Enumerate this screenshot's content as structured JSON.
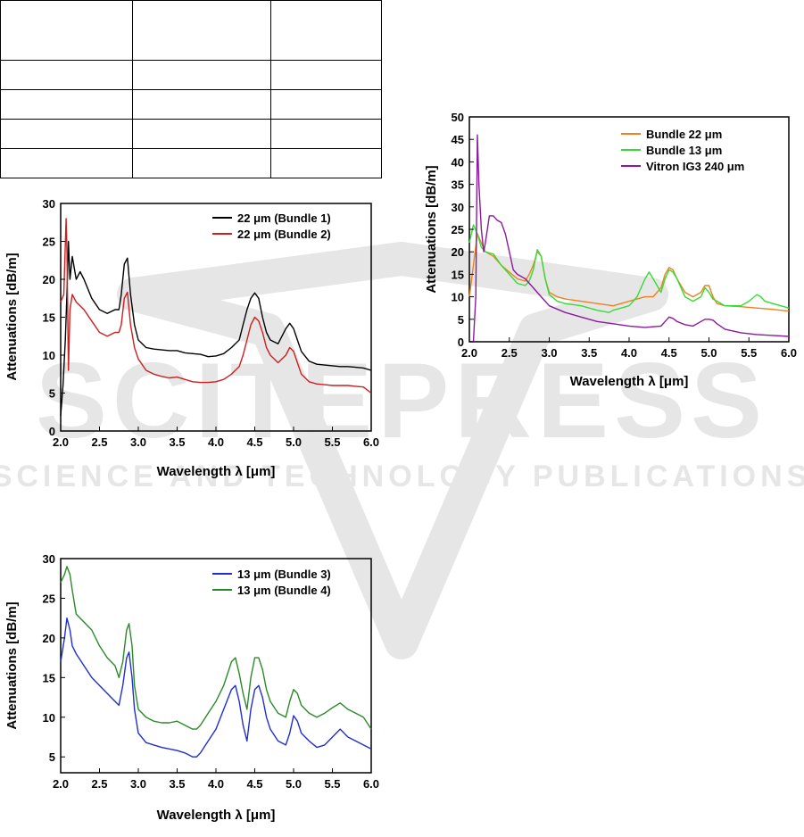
{
  "watermark": {
    "main_text": "SCITEPRESS",
    "sub_text": "SCIENCE AND TECHNOLOGY PUBLICATIONS",
    "color": "#c8c8c8"
  },
  "table_fragment": {
    "rows": 5,
    "cols": 3
  },
  "chart_data": [
    {
      "type": "line",
      "xlabel": "Wavelength λ [μm]",
      "ylabel": "Attenuations [dB/m]",
      "xlim": [
        2.0,
        6.0
      ],
      "ylim": [
        0,
        30
      ],
      "xticks": [
        "2.0",
        "2.5",
        "3.0",
        "3.5",
        "4.0",
        "4.5",
        "5.0",
        "5.5",
        "6.0"
      ],
      "yticks": [
        "0",
        "5",
        "10",
        "15",
        "20",
        "25",
        "30"
      ],
      "legend_position": "top-right",
      "grid": false,
      "series": [
        {
          "name": "22 μm (Bundle 1)",
          "color": "#000000",
          "x": [
            2.0,
            2.03,
            2.06,
            2.08,
            2.1,
            2.12,
            2.15,
            2.2,
            2.25,
            2.3,
            2.4,
            2.5,
            2.6,
            2.7,
            2.75,
            2.78,
            2.82,
            2.86,
            2.9,
            2.95,
            3.0,
            3.1,
            3.2,
            3.3,
            3.4,
            3.5,
            3.6,
            3.7,
            3.8,
            3.9,
            4.0,
            4.1,
            4.2,
            4.3,
            4.35,
            4.4,
            4.45,
            4.5,
            4.55,
            4.6,
            4.65,
            4.7,
            4.8,
            4.9,
            4.95,
            5.0,
            5.05,
            5.1,
            5.2,
            5.3,
            5.4,
            5.5,
            5.6,
            5.7,
            5.8,
            5.9,
            6.0
          ],
          "y": [
            2,
            6,
            12,
            18,
            25,
            20,
            23,
            20,
            21,
            20,
            17.5,
            16,
            15.5,
            16,
            16,
            18,
            22,
            22.8,
            18,
            14,
            12,
            11,
            10.8,
            10.7,
            10.6,
            10.6,
            10.3,
            10.2,
            10.1,
            9.8,
            9.9,
            10.2,
            11,
            12,
            14,
            16,
            17.5,
            18.2,
            17.5,
            15,
            13,
            12,
            11.5,
            13.5,
            14.2,
            13.5,
            12,
            10.5,
            9.2,
            8.8,
            8.7,
            8.6,
            8.5,
            8.5,
            8.4,
            8.3,
            8.0
          ]
        },
        {
          "name": "22 μm (Bundle 2)",
          "color": "#cc1f1f",
          "x": [
            2.0,
            2.04,
            2.07,
            2.08,
            2.1,
            2.12,
            2.15,
            2.2,
            2.25,
            2.3,
            2.4,
            2.5,
            2.6,
            2.7,
            2.75,
            2.78,
            2.82,
            2.86,
            2.9,
            2.95,
            3.0,
            3.1,
            3.2,
            3.3,
            3.4,
            3.5,
            3.6,
            3.7,
            3.8,
            3.9,
            4.0,
            4.1,
            4.2,
            4.3,
            4.35,
            4.4,
            4.45,
            4.5,
            4.55,
            4.6,
            4.65,
            4.7,
            4.8,
            4.9,
            4.95,
            5.0,
            5.05,
            5.1,
            5.2,
            5.3,
            5.4,
            5.5,
            5.6,
            5.7,
            5.8,
            5.9,
            6.0
          ],
          "y": [
            17,
            18,
            28,
            24,
            8,
            16,
            18,
            17,
            16.5,
            16,
            14.5,
            13,
            12.5,
            13,
            13,
            14,
            17.5,
            18.3,
            14,
            11,
            9.5,
            8,
            7.5,
            7.2,
            7,
            7.1,
            6.8,
            6.5,
            6.4,
            6.4,
            6.5,
            6.8,
            7.5,
            8.5,
            10,
            12,
            14,
            15,
            14.5,
            13,
            11,
            10,
            9,
            10,
            11,
            10.5,
            9,
            7.5,
            6.5,
            6.2,
            6.1,
            6,
            6,
            6,
            5.9,
            5.8,
            5.0
          ]
        }
      ]
    },
    {
      "type": "line",
      "xlabel": "Wavelength λ [μm]",
      "ylabel": "Attenuations [dB/m]",
      "xlim": [
        2.0,
        6.0
      ],
      "ylim": [
        0,
        50
      ],
      "xticks": [
        "2.0",
        "2.5",
        "3.0",
        "3.5",
        "4.0",
        "4.5",
        "5.0",
        "5.5",
        "6.0"
      ],
      "yticks": [
        "0",
        "5",
        "10",
        "15",
        "20",
        "25",
        "30",
        "35",
        "40",
        "45",
        "50"
      ],
      "legend_position": "top-right",
      "grid": false,
      "series": [
        {
          "name": "Bundle 22 μm",
          "color": "#f08020",
          "x": [
            2.0,
            2.05,
            2.1,
            2.15,
            2.2,
            2.3,
            2.4,
            2.5,
            2.6,
            2.7,
            2.75,
            2.8,
            2.85,
            2.9,
            2.95,
            3.0,
            3.1,
            3.2,
            3.4,
            3.6,
            3.8,
            4.0,
            4.1,
            4.2,
            4.3,
            4.4,
            4.45,
            4.5,
            4.55,
            4.6,
            4.7,
            4.8,
            4.9,
            4.95,
            5.0,
            5.05,
            5.1,
            5.2,
            5.4,
            5.6,
            5.8,
            6.0
          ],
          "y": [
            10,
            17,
            24,
            22,
            20,
            19,
            17,
            15.5,
            14,
            13.5,
            15,
            17,
            20,
            19,
            14,
            11,
            10,
            9.5,
            9,
            8.5,
            8,
            9,
            9.5,
            10,
            10,
            12,
            15,
            16.5,
            16,
            14,
            11,
            10,
            11,
            12.5,
            12.5,
            10,
            8.5,
            8,
            7.8,
            7.5,
            7.2,
            6.8
          ]
        },
        {
          "name": "Bundle 13 μm",
          "color": "#33dd33",
          "x": [
            2.0,
            2.05,
            2.1,
            2.15,
            2.2,
            2.3,
            2.4,
            2.5,
            2.6,
            2.7,
            2.75,
            2.8,
            2.85,
            2.9,
            2.95,
            3.0,
            3.1,
            3.2,
            3.4,
            3.6,
            3.75,
            3.8,
            4.0,
            4.1,
            4.2,
            4.25,
            4.3,
            4.4,
            4.45,
            4.5,
            4.55,
            4.6,
            4.7,
            4.8,
            4.9,
            4.95,
            5.0,
            5.05,
            5.1,
            5.2,
            5.4,
            5.5,
            5.6,
            5.65,
            5.7,
            5.8,
            6.0
          ],
          "y": [
            22,
            26,
            24,
            21,
            20,
            19.5,
            17,
            15,
            13,
            12.5,
            13.5,
            16,
            20.5,
            19,
            14,
            10.5,
            9,
            8.5,
            8,
            7,
            6.5,
            7,
            8,
            10,
            14,
            15.5,
            14,
            11,
            14,
            16,
            15.5,
            14,
            10,
            9,
            10,
            12,
            11,
            9.5,
            9,
            8,
            8,
            9,
            10.5,
            10,
            9,
            8.5,
            7.5
          ]
        },
        {
          "name": "Vitron IG3 240 μm",
          "color": "#8b1a9e",
          "x": [
            2.0,
            2.05,
            2.08,
            2.1,
            2.12,
            2.15,
            2.18,
            2.2,
            2.25,
            2.3,
            2.35,
            2.4,
            2.45,
            2.5,
            2.55,
            2.6,
            2.7,
            2.8,
            2.9,
            3.0,
            3.2,
            3.4,
            3.6,
            3.8,
            4.0,
            4.2,
            4.4,
            4.45,
            4.5,
            4.55,
            4.6,
            4.7,
            4.8,
            4.9,
            4.95,
            5.0,
            5.05,
            5.1,
            5.2,
            5.4,
            5.6,
            5.8,
            6.0
          ],
          "y": [
            0,
            0,
            10,
            46,
            35,
            25,
            20,
            22,
            28,
            28,
            27,
            26.5,
            24,
            20,
            16,
            15,
            14,
            12,
            10,
            8,
            6.5,
            5.5,
            4.5,
            4,
            3.5,
            3.2,
            3.5,
            4.5,
            5.5,
            5.2,
            4.5,
            3.8,
            3.5,
            4.5,
            5,
            5,
            4.8,
            4,
            2.8,
            2,
            1.6,
            1.4,
            1.2
          ]
        }
      ]
    },
    {
      "type": "line",
      "xlabel": "Wavelength λ [μm]",
      "ylabel": "Attenuations [dB/m]",
      "xlim": [
        2.0,
        6.0
      ],
      "ylim": [
        3,
        30
      ],
      "xticks": [
        "2.0",
        "2.5",
        "3.0",
        "3.5",
        "4.0",
        "4.5",
        "5.0",
        "5.5",
        "6.0"
      ],
      "yticks": [
        "5",
        "10",
        "15",
        "20",
        "25",
        "30"
      ],
      "legend_position": "top-right",
      "grid": false,
      "series": [
        {
          "name": "13 μm (Bundle 3)",
          "color": "#1f2fcc",
          "x": [
            2.0,
            2.05,
            2.08,
            2.12,
            2.15,
            2.2,
            2.3,
            2.4,
            2.5,
            2.6,
            2.7,
            2.75,
            2.8,
            2.85,
            2.88,
            2.92,
            2.95,
            3.0,
            3.1,
            3.2,
            3.3,
            3.4,
            3.5,
            3.6,
            3.7,
            3.75,
            3.8,
            3.9,
            4.0,
            4.1,
            4.2,
            4.25,
            4.3,
            4.35,
            4.4,
            4.45,
            4.5,
            4.55,
            4.6,
            4.65,
            4.7,
            4.8,
            4.9,
            4.95,
            5.0,
            5.05,
            5.1,
            5.2,
            5.3,
            5.4,
            5.5,
            5.6,
            5.7,
            5.8,
            5.9,
            6.0
          ],
          "y": [
            17,
            20,
            22.5,
            21,
            19,
            18,
            16.5,
            15,
            14,
            13,
            12,
            11.5,
            14,
            17.5,
            18.2,
            15,
            11,
            8,
            6.8,
            6.5,
            6.2,
            6,
            5.8,
            5.5,
            5,
            5,
            5.5,
            7,
            8.5,
            11,
            13.5,
            14,
            12,
            9,
            7,
            11,
            13.5,
            14,
            12.5,
            10,
            8.5,
            7,
            6.5,
            8,
            10.2,
            9.5,
            8,
            7,
            6.2,
            6.5,
            7.5,
            8.5,
            7.5,
            7,
            6.5,
            6
          ]
        },
        {
          "name": "13 μm (Bundle 4)",
          "color": "#2a8a2a",
          "x": [
            2.0,
            2.05,
            2.08,
            2.12,
            2.15,
            2.2,
            2.3,
            2.4,
            2.5,
            2.6,
            2.7,
            2.75,
            2.8,
            2.85,
            2.88,
            2.92,
            2.95,
            3.0,
            3.1,
            3.2,
            3.3,
            3.4,
            3.5,
            3.6,
            3.7,
            3.75,
            3.8,
            3.9,
            4.0,
            4.1,
            4.2,
            4.25,
            4.3,
            4.35,
            4.4,
            4.45,
            4.5,
            4.55,
            4.6,
            4.65,
            4.7,
            4.8,
            4.9,
            4.95,
            5.0,
            5.05,
            5.1,
            5.2,
            5.3,
            5.4,
            5.5,
            5.6,
            5.7,
            5.8,
            5.9,
            6.0
          ],
          "y": [
            27,
            28,
            29,
            28,
            26,
            23,
            22,
            21,
            19,
            17.5,
            16.5,
            15,
            17,
            21,
            21.8,
            19,
            14,
            11,
            10,
            9.5,
            9.3,
            9.3,
            9.5,
            9,
            8.5,
            8.5,
            9,
            10.5,
            12,
            14,
            17,
            17.5,
            15.5,
            13,
            11,
            15,
            17.5,
            17.5,
            16,
            13.5,
            12,
            10.5,
            10,
            12,
            13.5,
            13,
            11.5,
            10.5,
            10,
            10.5,
            11.2,
            11.8,
            11,
            10.5,
            10,
            8.5
          ]
        }
      ]
    }
  ]
}
